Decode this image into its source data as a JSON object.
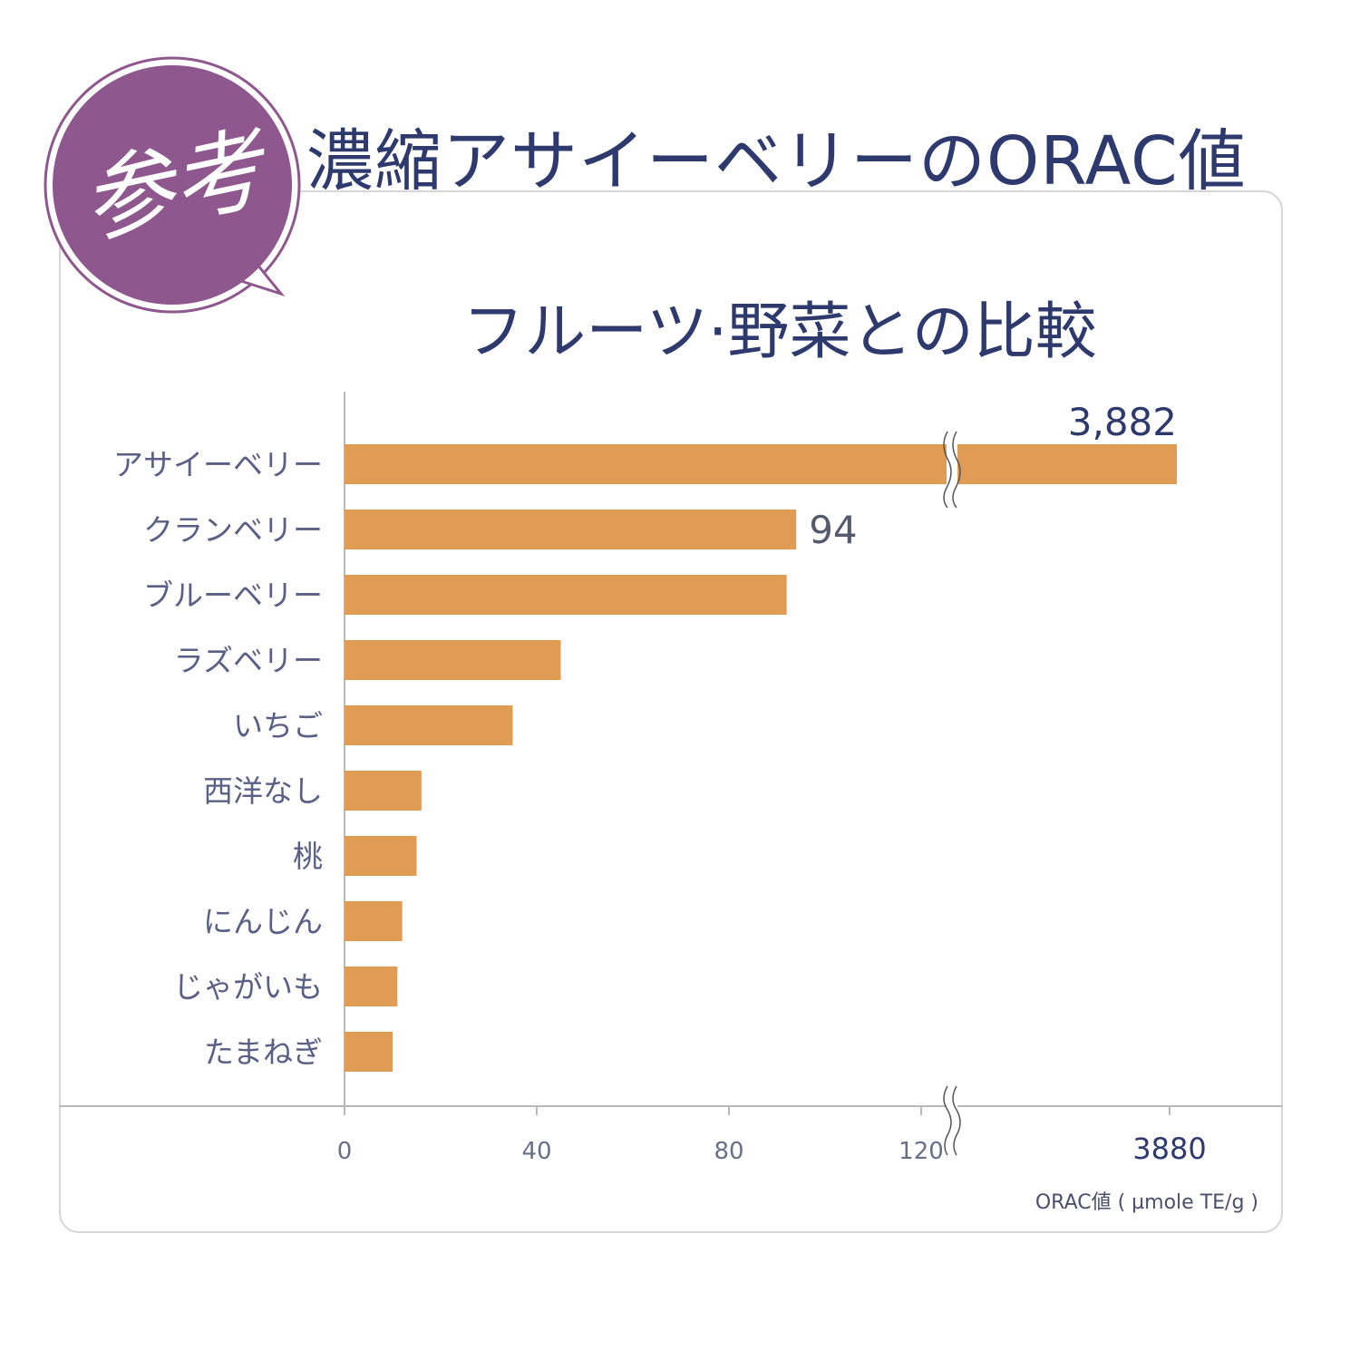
{
  "badge": {
    "text": "参考",
    "color": "#8e588e"
  },
  "title": "濃縮アサイーベリーのORAC値",
  "subtitle": "フルーツ·野菜との比較",
  "unit_label": "ORAC値 ( µmole TE/g )",
  "colors": {
    "bar": "#e09b55",
    "category_text": "#5a6085",
    "axis": "#b8b8b8",
    "value_text": "#2e3a6e"
  },
  "chart_data": {
    "type": "bar",
    "orientation": "horizontal",
    "categories": [
      "アサイーベリー",
      "クランベリー",
      "ブルーベリー",
      "ラズベリー",
      "いちご",
      "西洋なし",
      "桃",
      "にんじん",
      "じゃがいも",
      "たまねぎ"
    ],
    "values": [
      3882,
      94,
      92,
      45,
      35,
      16,
      15,
      12,
      11,
      10
    ],
    "data_labels": [
      "3,882",
      "94",
      "",
      "",
      "",
      "",
      "",
      "",
      "",
      ""
    ],
    "x_ticks": [
      "0",
      "40",
      "80",
      "120",
      "3880"
    ],
    "x_tick_values": [
      0,
      40,
      80,
      120,
      3880
    ],
    "axis_break": true,
    "xlim": [
      0,
      3880
    ],
    "grid": false
  }
}
